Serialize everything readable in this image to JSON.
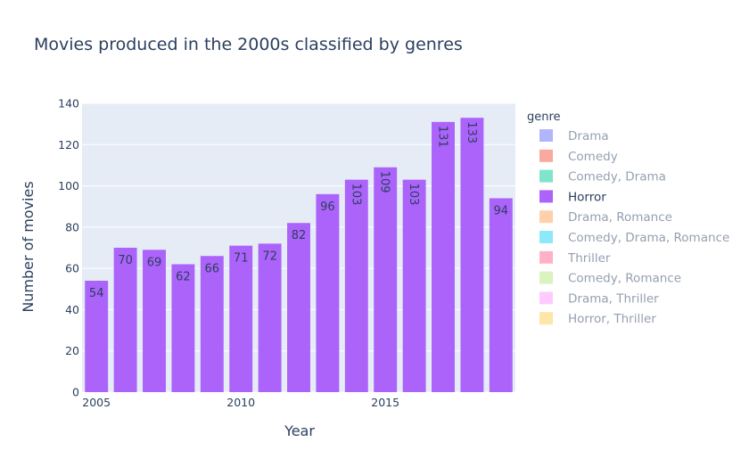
{
  "chart_data": {
    "type": "bar",
    "title": "Movies produced in the 2000s classified by genres",
    "xlabel": "Year",
    "ylabel": "Number of movies",
    "ylim": [
      0,
      140
    ],
    "xlim": [
      2004.5,
      2019.5
    ],
    "yticks": [
      0,
      20,
      40,
      60,
      80,
      100,
      120,
      140
    ],
    "xticks": [
      2005,
      2010,
      2015
    ],
    "x": [
      2005,
      2006,
      2007,
      2008,
      2009,
      2010,
      2011,
      2012,
      2013,
      2014,
      2015,
      2016,
      2017,
      2018,
      2019
    ],
    "series": [
      {
        "name": "Horror",
        "color": "#ab63fa",
        "values": [
          54,
          70,
          69,
          62,
          66,
          71,
          72,
          82,
          96,
          103,
          109,
          103,
          131,
          133,
          94
        ]
      }
    ],
    "grid": true,
    "legend": {
      "title": "genre",
      "placement": "right",
      "items": [
        {
          "label": "Drama",
          "color": "#636efa",
          "active": false
        },
        {
          "label": "Comedy",
          "color": "#EF553B",
          "active": false
        },
        {
          "label": "Comedy, Drama",
          "color": "#00cc96",
          "active": false
        },
        {
          "label": "Horror",
          "color": "#ab63fa",
          "active": true
        },
        {
          "label": "Drama, Romance",
          "color": "#FFA15A",
          "active": false
        },
        {
          "label": "Comedy, Drama, Romance",
          "color": "#19d3f3",
          "active": false
        },
        {
          "label": "Thriller",
          "color": "#FF6692",
          "active": false
        },
        {
          "label": "Comedy, Romance",
          "color": "#B6E880",
          "active": false
        },
        {
          "label": "Drama, Thriller",
          "color": "#FF97FF",
          "active": false
        },
        {
          "label": "Horror, Thriller",
          "color": "#FECB52",
          "active": false
        }
      ]
    },
    "plot_bg": "#e5ecf6"
  }
}
